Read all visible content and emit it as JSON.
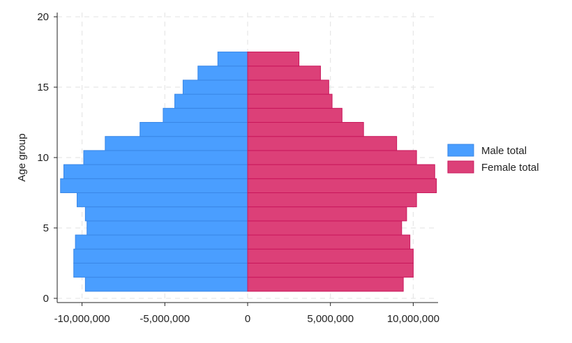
{
  "chart_data": {
    "type": "bar",
    "orientation": "horizontal",
    "ylabel": "Age group",
    "xlabel": "",
    "xlim": [
      -11500000,
      11500000
    ],
    "ylim": [
      -0.3,
      20.3
    ],
    "x_ticks": [
      -10000000,
      -5000000,
      0,
      5000000,
      10000000
    ],
    "x_tick_labels": [
      "-10,000,000",
      "-5,000,000",
      "0",
      "5,000,000",
      "10,000,000"
    ],
    "y_ticks": [
      0,
      5,
      10,
      15,
      20
    ],
    "y_tick_labels": [
      "0",
      "5",
      "10",
      "15",
      "20"
    ],
    "grid": true,
    "legend_position": "right",
    "categories": [
      1,
      2,
      3,
      4,
      5,
      6,
      7,
      8,
      9,
      10,
      11,
      12,
      13,
      14,
      15,
      16,
      17
    ],
    "series": [
      {
        "name": "Male total",
        "color": "#4a9eff",
        "stroke": "#3a87e6",
        "values": [
          -9800000,
          -10500000,
          -10500000,
          -10400000,
          -9700000,
          -9800000,
          -10300000,
          -11300000,
          -11100000,
          -9900000,
          -8600000,
          -6500000,
          -5100000,
          -4400000,
          -3900000,
          -3000000,
          -1800000
        ]
      },
      {
        "name": "Female total",
        "color": "#dc4078",
        "stroke": "#c8175c",
        "values": [
          9400000,
          10000000,
          10000000,
          9800000,
          9300000,
          9600000,
          10200000,
          11400000,
          11300000,
          10200000,
          9000000,
          7000000,
          5700000,
          5100000,
          4900000,
          4400000,
          3100000
        ]
      }
    ]
  }
}
